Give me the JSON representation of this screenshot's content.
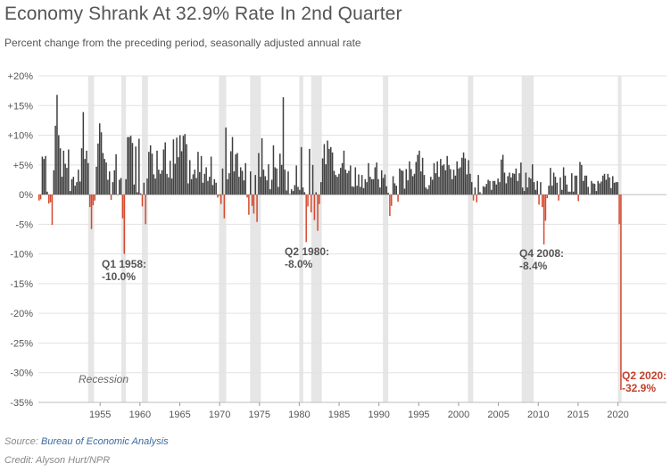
{
  "title": "Economy Shrank At 32.9% Rate In 2nd Quarter",
  "subtitle": "Percent change from the preceding period, seasonally adjusted annual rate",
  "source_label": "Source:",
  "source_name": "Bureau of Economic Analysis",
  "credit": "Credit: Alyson Hurt/NPR",
  "colors": {
    "positive": "#3f3f3f",
    "negative": "#d6492e",
    "recession": "#e6e6e6",
    "grid": "#e2e2e2",
    "annotation": "#555555",
    "highlight": "#c4412b"
  },
  "chart_data": {
    "type": "bar",
    "title": "Economy Shrank At 32.9% Rate In 2nd Quarter",
    "ylim": [
      -35,
      20
    ],
    "y_ticks": [
      "+20%",
      "+15%",
      "+10%",
      "+5%",
      "0%",
      "-5%",
      "-10%",
      "-15%",
      "-20%",
      "-25%",
      "-30%",
      "-35%"
    ],
    "y_tick_values": [
      20,
      15,
      10,
      5,
      0,
      -5,
      -10,
      -15,
      -20,
      -25,
      -30,
      -35
    ],
    "x_ticks": [
      "1955",
      "1960",
      "1965",
      "1970",
      "1975",
      "1980",
      "1985",
      "1990",
      "1995",
      "2000",
      "2005",
      "2010",
      "2015",
      "2020"
    ],
    "x_start": "1947 Q2",
    "x_end": "2020 Q2",
    "recessions": [
      [
        1953.5,
        1954.25
      ],
      [
        1957.67,
        1958.25
      ],
      [
        1960.25,
        1961.0
      ],
      [
        1969.92,
        1970.83
      ],
      [
        1973.83,
        1975.17
      ],
      [
        1980.0,
        1980.5
      ],
      [
        1981.5,
        1982.83
      ],
      [
        1990.5,
        1991.17
      ],
      [
        2001.17,
        2001.83
      ],
      [
        2007.92,
        2009.42
      ],
      [
        2020.0,
        2020.42
      ]
    ],
    "recession_label": "Recession",
    "annotations": [
      {
        "label": "Q1 1958:",
        "value_label": "-10.0%",
        "x": 1958.0,
        "y": -10.0
      },
      {
        "label": "Q2 1980:",
        "value_label": "-8.0%",
        "x": 1980.25,
        "y": -8.0
      },
      {
        "label": "Q4 2008:",
        "value_label": "-8.4%",
        "x": 2008.75,
        "y": -8.4
      },
      {
        "label": "Q2 2020:",
        "value_label": "-32.9%",
        "x": 2020.25,
        "y": -32.9
      }
    ],
    "values": [
      -1.0,
      -0.8,
      6.4,
      6.0,
      6.5,
      0.5,
      -1.5,
      -1.3,
      -5.1,
      4.1,
      11.6,
      16.8,
      10.0,
      7.8,
      3.0,
      7.4,
      5.2,
      4.5,
      7.6,
      0.6,
      2.6,
      3.0,
      1.5,
      2.1,
      4.2,
      2.2,
      7.8,
      13.9,
      6.0,
      7.4,
      5.3,
      -2.1,
      -5.8,
      -1.8,
      -1.0,
      4.7,
      8.6,
      12.0,
      10.5,
      7.0,
      6.0,
      5.4,
      2.5,
      3.9,
      -0.9,
      2.1,
      4.1,
      6.8,
      0.0,
      2.5,
      2.8,
      -4.0,
      -10.0,
      2.6,
      9.7,
      9.7,
      9.9,
      8.7,
      1.7,
      8.1,
      0.4,
      9.4,
      0.2,
      -2.0,
      2.0,
      -5.0,
      2.7,
      7.2,
      8.3,
      6.9,
      3.4,
      2.7,
      7.4,
      4.2,
      3.5,
      4.1,
      7.6,
      8.8,
      3.5,
      2.9,
      5.7,
      2.7,
      9.3,
      5.2,
      9.6,
      6.3,
      10.0,
      7.3,
      9.9,
      10.2,
      8.5,
      1.9,
      5.8,
      2.6,
      3.4,
      4.2,
      2.8,
      7.2,
      3.8,
      6.5,
      2.0,
      3.5,
      4.6,
      2.3,
      3.0,
      6.4,
      1.6,
      2.6,
      2.0,
      -0.5,
      -0.2,
      -1.6,
      4.4,
      -4.0,
      11.3,
      2.6,
      3.6,
      7.3,
      9.7,
      3.9,
      6.8,
      7.0,
      3.0,
      4.6,
      4.0,
      2.4,
      5.3,
      -0.5,
      -3.4,
      3.9,
      -1.9,
      -3.2,
      3.3,
      -4.6,
      7.0,
      3.0,
      9.5,
      4.2,
      3.1,
      2.4,
      5.1,
      0.9,
      2.5,
      8.3,
      4.6,
      4.4,
      1.3,
      6.9,
      5.0,
      16.4,
      4.2,
      0.7,
      3.9,
      0.1,
      0.9,
      0.6,
      1.6,
      4.9,
      1.3,
      0.8,
      8.0,
      1.2,
      0.4,
      -8.0,
      -2.0,
      7.7,
      -3.0,
      5.0,
      -4.3,
      0.4,
      -6.1,
      -1.6,
      2.1,
      6.1,
      8.5,
      5.1,
      9.1,
      7.7,
      8.0,
      7.1,
      4.0,
      3.3,
      3.0,
      3.5,
      4.5,
      5.3,
      7.4,
      4.2,
      3.6,
      4.0,
      4.9,
      1.4,
      1.3,
      4.6,
      1.5,
      3.4,
      1.3,
      3.3,
      1.1,
      2.6,
      2.1,
      5.3,
      3.0,
      2.6,
      2.6,
      4.6,
      5.4,
      2.6,
      1.2,
      4.1,
      2.8,
      3.4,
      1.4,
      0.3,
      -3.6,
      -1.9,
      3.1,
      1.9,
      1.5,
      -1.2,
      4.4,
      4.1,
      4.0,
      1.0,
      4.3,
      2.4,
      5.6,
      4.3,
      3.1,
      3.5,
      5.5,
      6.7,
      7.4,
      3.9,
      6.2,
      3.3,
      1.2,
      0.9,
      1.6,
      3.0,
      2.5,
      5.3,
      3.6,
      5.6,
      3.0,
      6.0,
      4.9,
      5.1,
      4.1,
      6.5,
      5.0,
      4.3,
      2.6,
      4.2,
      3.2,
      5.6,
      4.4,
      4.6,
      6.2,
      7.1,
      6.1,
      3.4,
      5.8,
      3.5,
      2.1,
      -1.0,
      1.2,
      -1.3,
      3.3,
      0.4,
      0.1,
      1.4,
      1.3,
      1.8,
      2.5,
      2.3,
      0.8,
      2.3,
      2.3,
      1.7,
      2.7,
      2.1,
      5.9,
      6.7,
      3.7,
      1.9,
      3.1,
      3.7,
      2.9,
      3.6,
      3.5,
      4.4,
      2.3,
      3.6,
      5.4,
      1.2,
      0.6,
      3.7,
      1.2,
      2.9,
      2.7,
      5.1,
      2.1,
      0.8,
      2.3,
      -1.7,
      2.1,
      -2.1,
      -8.4,
      -4.4,
      -0.6,
      1.5,
      4.5,
      1.5,
      3.7,
      3.0,
      2.0,
      -1.0,
      2.9,
      0.8,
      4.6,
      3.2,
      1.7,
      0.5,
      0.5,
      3.6,
      0.5,
      3.2,
      3.2,
      -1.1,
      5.5,
      5.0,
      2.3,
      3.2,
      3.2,
      1.3,
      0.1,
      2.3,
      1.9,
      1.8,
      0.6,
      2.3,
      1.9,
      2.2,
      3.2,
      3.5,
      2.5,
      3.5,
      2.9,
      1.1,
      3.1,
      2.0,
      2.1,
      2.1,
      -5.0,
      -32.9
    ]
  }
}
